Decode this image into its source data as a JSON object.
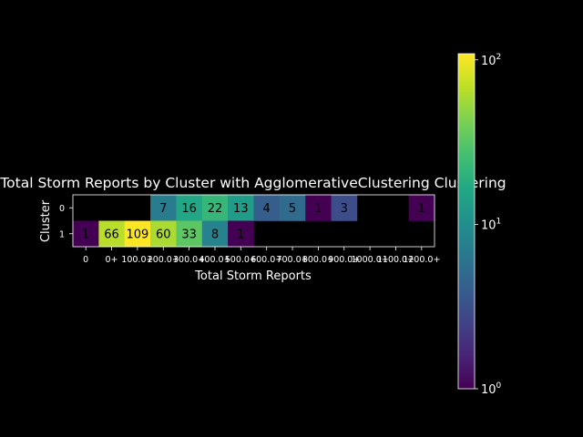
{
  "chart_data": {
    "type": "heatmap",
    "title": "Total Storm Reports by Cluster with AgglomerativeClustering Clustering",
    "xlabel": "Total Storm Reports",
    "ylabel": "Cluster",
    "x_categories": [
      "0",
      "0+",
      "100.0+",
      "200.0+",
      "300.0+",
      "400.0+",
      "500.0+",
      "600.0+",
      "700.0+",
      "800.0+",
      "900.0+",
      "1000.0+",
      "1100.0+",
      "1200.0+"
    ],
    "y_categories": [
      "0",
      "1"
    ],
    "values": [
      [
        null,
        null,
        null,
        7,
        16,
        22,
        13,
        4,
        5,
        1,
        3,
        null,
        null,
        1
      ],
      [
        1,
        66,
        109,
        60,
        33,
        8,
        1,
        null,
        null,
        null,
        null,
        null,
        null,
        null
      ]
    ],
    "color_scale": "log",
    "colormap": "viridis",
    "colorbar": {
      "range": [
        1,
        109
      ],
      "ticks": [
        "10^0",
        "10^1",
        "10^2"
      ]
    },
    "grid": false,
    "colors": {
      "background": "#000000",
      "text": "#ffffff"
    }
  }
}
